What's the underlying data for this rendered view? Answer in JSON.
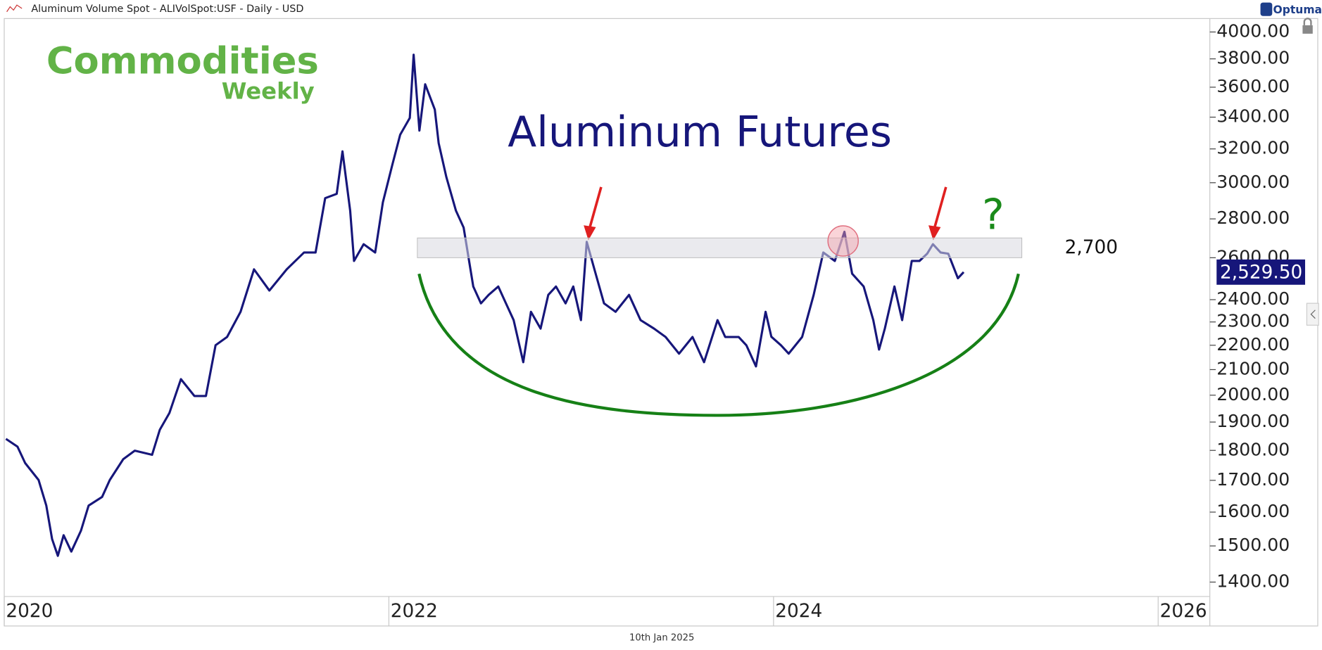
{
  "chart_data": {
    "type": "line",
    "title": "Aluminum Volume Spot - ALIVolSpot:USF - Daily - USD",
    "brand": "Optuma",
    "watermark": "Commodities",
    "watermark_sub": "Weekly",
    "annotation": "Aluminum Futures",
    "question_mark": "?",
    "date_label": "10th Jan 2025",
    "log_scale": true,
    "xlim": [
      2020,
      2026.26
    ],
    "ylim": [
      1362,
      4104
    ],
    "xticks": [
      2020,
      2022,
      2024,
      2026
    ],
    "yticks": [
      {
        "value": 4000,
        "label": "4000.00"
      },
      {
        "value": 3800,
        "label": "3800.00"
      },
      {
        "value": 3600,
        "label": "3600.00"
      },
      {
        "value": 3400,
        "label": "3400.00"
      },
      {
        "value": 3200,
        "label": "3200.00"
      },
      {
        "value": 3000,
        "label": "3000.00"
      },
      {
        "value": 2800,
        "label": "2800.00"
      },
      {
        "value": 2600,
        "label": "2600.00"
      },
      {
        "value": 2400,
        "label": "2400.00"
      },
      {
        "value": 2300,
        "label": "2300.00"
      },
      {
        "value": 2200,
        "label": "2200.00"
      },
      {
        "value": 2100,
        "label": "2100.00"
      },
      {
        "value": 2000,
        "label": "2000.00"
      },
      {
        "value": 1900,
        "label": "1900.00"
      },
      {
        "value": 1800,
        "label": "1800.00"
      },
      {
        "value": 1700,
        "label": "1700.00"
      },
      {
        "value": 1600,
        "label": "1600.00"
      },
      {
        "value": 1500,
        "label": "1500.00"
      },
      {
        "value": 1400,
        "label": "1400.00"
      }
    ],
    "resistance": {
      "value": 2700,
      "label": "2,700",
      "low": 2600
    },
    "last_price": {
      "value": 2529.5,
      "label": "2,529.50"
    },
    "series": [
      {
        "color": "#16167a",
        "x": [
          2020.0,
          2020.06,
          2020.1,
          2020.17,
          2020.21,
          2020.24,
          2020.27,
          2020.3,
          2020.34,
          2020.39,
          2020.43,
          2020.5,
          2020.54,
          2020.61,
          2020.67,
          2020.76,
          2020.8,
          2020.85,
          2020.91,
          2020.98,
          2021.04,
          2021.09,
          2021.15,
          2021.22,
          2021.29,
          2021.37,
          2021.46,
          2021.55,
          2021.61,
          2021.66,
          2021.72,
          2021.75,
          2021.79,
          2021.81,
          2021.86,
          2021.92,
          2021.96,
          2022.01,
          2022.05,
          2022.1,
          2022.12,
          2022.15,
          2022.18,
          2022.23,
          2022.25,
          2022.29,
          2022.34,
          2022.38,
          2022.43,
          2022.47,
          2022.51,
          2022.56,
          2022.6,
          2022.64,
          2022.69,
          2022.73,
          2022.78,
          2022.82,
          2022.86,
          2022.91,
          2022.95,
          2022.99,
          2023.02,
          2023.06,
          2023.11,
          2023.17,
          2023.24,
          2023.3,
          2023.37,
          2023.43,
          2023.5,
          2023.57,
          2023.63,
          2023.7,
          2023.74,
          2023.81,
          2023.85,
          2023.9,
          2023.95,
          2023.98,
          2024.03,
          2024.07,
          2024.14,
          2024.2,
          2024.25,
          2024.31,
          2024.36,
          2024.4,
          2024.46,
          2024.51,
          2024.54,
          2024.57,
          2024.62,
          2024.66,
          2024.71,
          2024.75,
          2024.79,
          2024.82,
          2024.86,
          2024.9,
          2024.95,
          2024.98
        ],
        "values": [
          1840,
          1813,
          1757,
          1701,
          1620,
          1520,
          1472,
          1531,
          1484,
          1544,
          1620,
          1647,
          1701,
          1770,
          1799,
          1785,
          1872,
          1933,
          2062,
          1997,
          1997,
          2200,
          2235,
          2345,
          2543,
          2442,
          2543,
          2626,
          2626,
          2913,
          2937,
          3185,
          2844,
          2584,
          2668,
          2626,
          2890,
          3108,
          3288,
          3395,
          3830,
          3314,
          3620,
          3450,
          3236,
          3033,
          2844,
          2754,
          2461,
          2383,
          2422,
          2461,
          2383,
          2308,
          2130,
          2345,
          2271,
          2422,
          2461,
          2383,
          2461,
          2308,
          2680,
          2543,
          2383,
          2345,
          2422,
          2308,
          2271,
          2235,
          2165,
          2235,
          2130,
          2308,
          2235,
          2235,
          2200,
          2113,
          2345,
          2236,
          2200,
          2165,
          2235,
          2422,
          2626,
          2584,
          2732,
          2522,
          2461,
          2308,
          2182,
          2271,
          2461,
          2308,
          2584,
          2584,
          2620,
          2668,
          2626,
          2620,
          2500,
          2529.5
        ]
      }
    ]
  }
}
